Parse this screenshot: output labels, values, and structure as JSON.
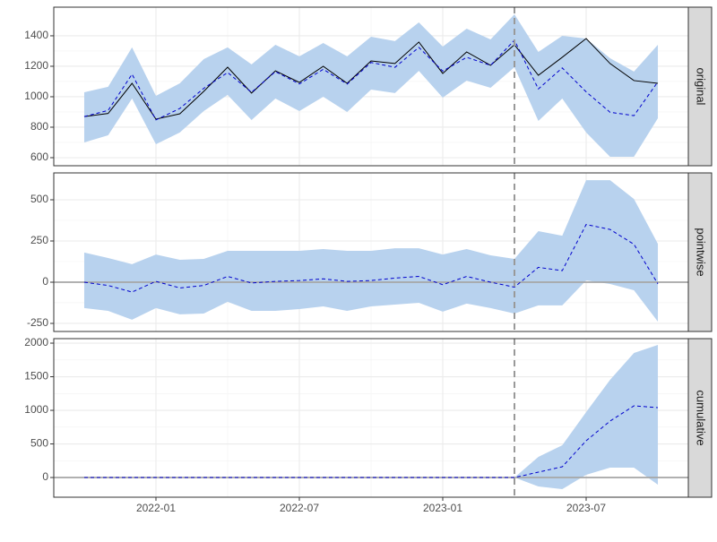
{
  "chart_data": {
    "type": "line",
    "x": [
      "2021-10",
      "2021-11",
      "2021-12",
      "2022-01",
      "2022-02",
      "2022-03",
      "2022-04",
      "2022-05",
      "2022-06",
      "2022-07",
      "2022-08",
      "2022-09",
      "2022-10",
      "2022-11",
      "2022-12",
      "2023-01",
      "2023-02",
      "2023-03",
      "2023-04",
      "2023-05",
      "2023-06",
      "2023-07",
      "2023-08",
      "2023-09",
      "2023-10"
    ],
    "xticks": [
      "2022-01",
      "2022-07",
      "2023-01",
      "2023-07"
    ],
    "intervention": "2023-04",
    "band_color": "#b8d2ee",
    "predicted_color": "#0000cc",
    "actual_color": "#000000",
    "panels": [
      {
        "strip": "original",
        "ylim": [
          547,
          1588
        ],
        "yticks": [
          600,
          800,
          1000,
          1200,
          1400
        ],
        "actual": [
          870,
          890,
          1088,
          853,
          888,
          1035,
          1194,
          1024,
          1170,
          1094,
          1200,
          1088,
          1235,
          1218,
          1359,
          1153,
          1294,
          1206,
          1341,
          1141,
          1259,
          1382,
          1218,
          1106,
          1088
        ],
        "predicted": [
          870,
          910,
          1148,
          848,
          923,
          1055,
          1159,
          1029,
          1165,
          1084,
          1180,
          1083,
          1225,
          1193,
          1324,
          1168,
          1259,
          1206,
          1371,
          1051,
          1189,
          1032,
          898,
          876,
          1098
        ],
        "upper": [
          1029,
          1065,
          1324,
          1006,
          1088,
          1247,
          1324,
          1212,
          1341,
          1265,
          1353,
          1265,
          1394,
          1365,
          1488,
          1329,
          1447,
          1376,
          1541,
          1294,
          1400,
          1382,
          1253,
          1165,
          1341
        ],
        "lower": [
          700,
          747,
          988,
          688,
          765,
          906,
          1012,
          847,
          988,
          906,
          1000,
          900,
          1047,
          1024,
          1170,
          994,
          1106,
          1059,
          1194,
          841,
          988,
          765,
          606,
          606,
          859
        ]
      },
      {
        "strip": "pointwise",
        "ylim": [
          -299,
          663
        ],
        "yticks": [
          -250,
          0,
          250,
          500
        ],
        "hline": 0,
        "predicted": [
          0,
          -20,
          -60,
          5,
          -35,
          -20,
          35,
          -5,
          5,
          10,
          20,
          5,
          10,
          25,
          35,
          -15,
          35,
          0,
          -30,
          90,
          70,
          350,
          320,
          230,
          -10
        ],
        "upper": [
          180,
          147,
          109,
          168,
          136,
          141,
          190,
          190,
          190,
          190,
          201,
          190,
          190,
          206,
          206,
          168,
          201,
          163,
          141,
          310,
          282,
          619,
          619,
          505,
          233
        ],
        "lower": [
          -157,
          -174,
          -228,
          -157,
          -195,
          -190,
          -119,
          -174,
          -174,
          -163,
          -147,
          -174,
          -147,
          -136,
          -125,
          -179,
          -130,
          -157,
          -190,
          -141,
          -141,
          11,
          -11,
          -49,
          -239
        ]
      },
      {
        "strip": "cumulative",
        "ylim": [
          -293,
          2067
        ],
        "yticks": [
          0,
          500,
          1000,
          1500,
          2000
        ],
        "hline": 0,
        "predicted": [
          0,
          0,
          0,
          0,
          0,
          0,
          0,
          0,
          0,
          0,
          0,
          0,
          0,
          0,
          0,
          0,
          0,
          0,
          0,
          80,
          160,
          547,
          840,
          1067,
          1040
        ],
        "upper": [
          0,
          0,
          0,
          0,
          0,
          0,
          0,
          0,
          0,
          0,
          0,
          0,
          0,
          0,
          0,
          0,
          0,
          0,
          0,
          307,
          480,
          973,
          1453,
          1853,
          1973
        ],
        "lower": [
          0,
          0,
          0,
          0,
          0,
          0,
          0,
          0,
          0,
          0,
          0,
          0,
          0,
          0,
          0,
          0,
          0,
          0,
          0,
          -133,
          -173,
          40,
          147,
          147,
          -107
        ]
      }
    ]
  }
}
